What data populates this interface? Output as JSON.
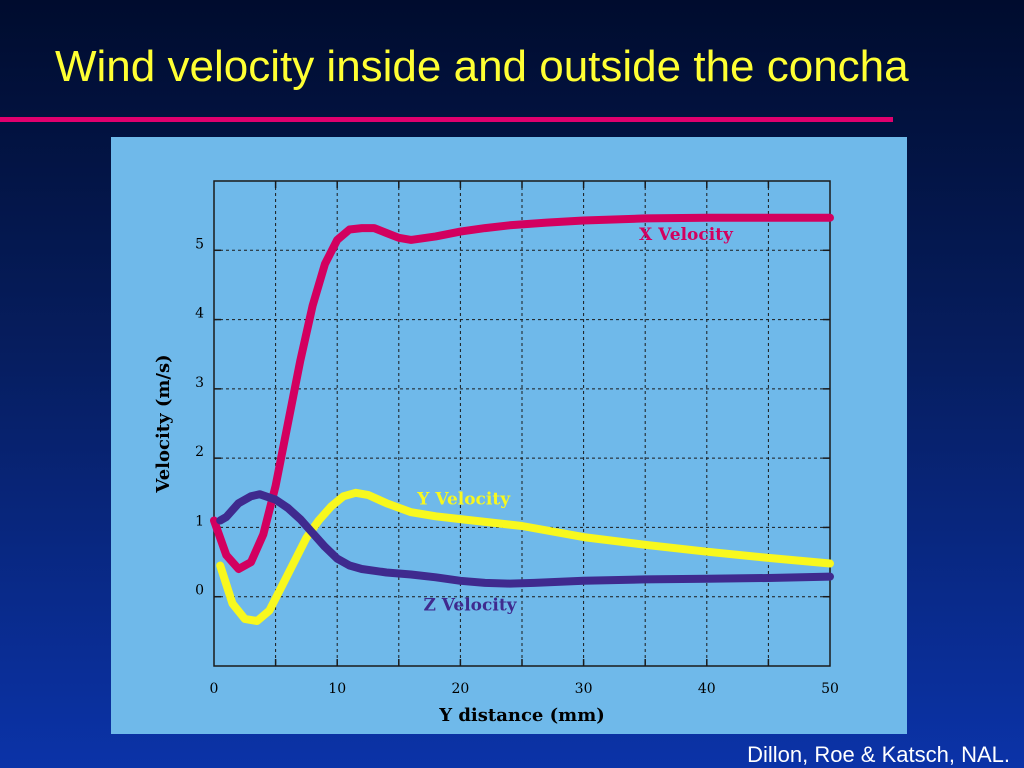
{
  "slide": {
    "title": "Wind velocity inside and outside the concha",
    "credit": "Dillon, Roe & Katsch, NAL."
  },
  "colors": {
    "title": "#ffff33",
    "rule": "#e0006e",
    "panel": "#6fb9ea",
    "x_velocity": "#d3005f",
    "y_velocity": "#f8f81e",
    "z_velocity": "#3f2a8e"
  },
  "chart_data": {
    "type": "line",
    "title": "",
    "xlabel": "Y distance (mm)",
    "ylabel": "Velocity (m/s)",
    "xlim": [
      0,
      50
    ],
    "ylim": [
      -1,
      6
    ],
    "xticks": [
      0,
      10,
      20,
      30,
      40,
      50
    ],
    "yticks": [
      0,
      1,
      2,
      3,
      4,
      5
    ],
    "grid": true,
    "series": [
      {
        "name": "X Velocity",
        "color": "#d3005f",
        "points": [
          [
            0,
            1.1
          ],
          [
            1,
            0.6
          ],
          [
            2,
            0.4
          ],
          [
            3,
            0.5
          ],
          [
            4,
            0.9
          ],
          [
            5,
            1.6
          ],
          [
            6,
            2.5
          ],
          [
            7,
            3.4
          ],
          [
            8,
            4.2
          ],
          [
            9,
            4.8
          ],
          [
            10,
            5.15
          ],
          [
            11,
            5.3
          ],
          [
            12,
            5.32
          ],
          [
            13,
            5.32
          ],
          [
            14,
            5.25
          ],
          [
            15,
            5.18
          ],
          [
            16,
            5.15
          ],
          [
            18,
            5.2
          ],
          [
            20,
            5.27
          ],
          [
            22,
            5.32
          ],
          [
            24,
            5.36
          ],
          [
            27,
            5.4
          ],
          [
            30,
            5.43
          ],
          [
            35,
            5.46
          ],
          [
            40,
            5.47
          ],
          [
            45,
            5.47
          ],
          [
            50,
            5.47
          ]
        ]
      },
      {
        "name": "Y Velocity",
        "color": "#f8f81e",
        "points": [
          [
            0.5,
            0.45
          ],
          [
            1.5,
            -0.1
          ],
          [
            2.5,
            -0.32
          ],
          [
            3.5,
            -0.35
          ],
          [
            4.5,
            -0.2
          ],
          [
            5.5,
            0.15
          ],
          [
            6.5,
            0.5
          ],
          [
            7.5,
            0.85
          ],
          [
            8.5,
            1.1
          ],
          [
            9.5,
            1.3
          ],
          [
            10.5,
            1.45
          ],
          [
            11.5,
            1.5
          ],
          [
            12.5,
            1.47
          ],
          [
            14,
            1.35
          ],
          [
            16,
            1.22
          ],
          [
            18,
            1.16
          ],
          [
            20,
            1.12
          ],
          [
            22,
            1.08
          ],
          [
            25,
            1.02
          ],
          [
            30,
            0.86
          ],
          [
            35,
            0.75
          ],
          [
            40,
            0.65
          ],
          [
            45,
            0.56
          ],
          [
            50,
            0.48
          ]
        ]
      },
      {
        "name": "Z Velocity",
        "color": "#3f2a8e",
        "points": [
          [
            0.5,
            1.1
          ],
          [
            1,
            1.15
          ],
          [
            2,
            1.35
          ],
          [
            3,
            1.45
          ],
          [
            3.7,
            1.48
          ],
          [
            5,
            1.4
          ],
          [
            6,
            1.28
          ],
          [
            7,
            1.12
          ],
          [
            8,
            0.92
          ],
          [
            9,
            0.72
          ],
          [
            10,
            0.55
          ],
          [
            11,
            0.45
          ],
          [
            12,
            0.4
          ],
          [
            14,
            0.35
          ],
          [
            16,
            0.32
          ],
          [
            18,
            0.28
          ],
          [
            20,
            0.23
          ],
          [
            22,
            0.2
          ],
          [
            24,
            0.19
          ],
          [
            26,
            0.2
          ],
          [
            30,
            0.23
          ],
          [
            35,
            0.25
          ],
          [
            40,
            0.26
          ],
          [
            45,
            0.27
          ],
          [
            50,
            0.29
          ]
        ]
      }
    ],
    "annotations": [
      {
        "text": "X Velocity",
        "x": 34.5,
        "y": 5.15,
        "color": "#d3005f"
      },
      {
        "text": "Y Velocity",
        "x": 16.5,
        "y": 1.33,
        "color": "#f8f81e"
      },
      {
        "text": "Z Velocity",
        "x": 17,
        "y": -0.2,
        "color": "#3f2a8e"
      }
    ]
  }
}
